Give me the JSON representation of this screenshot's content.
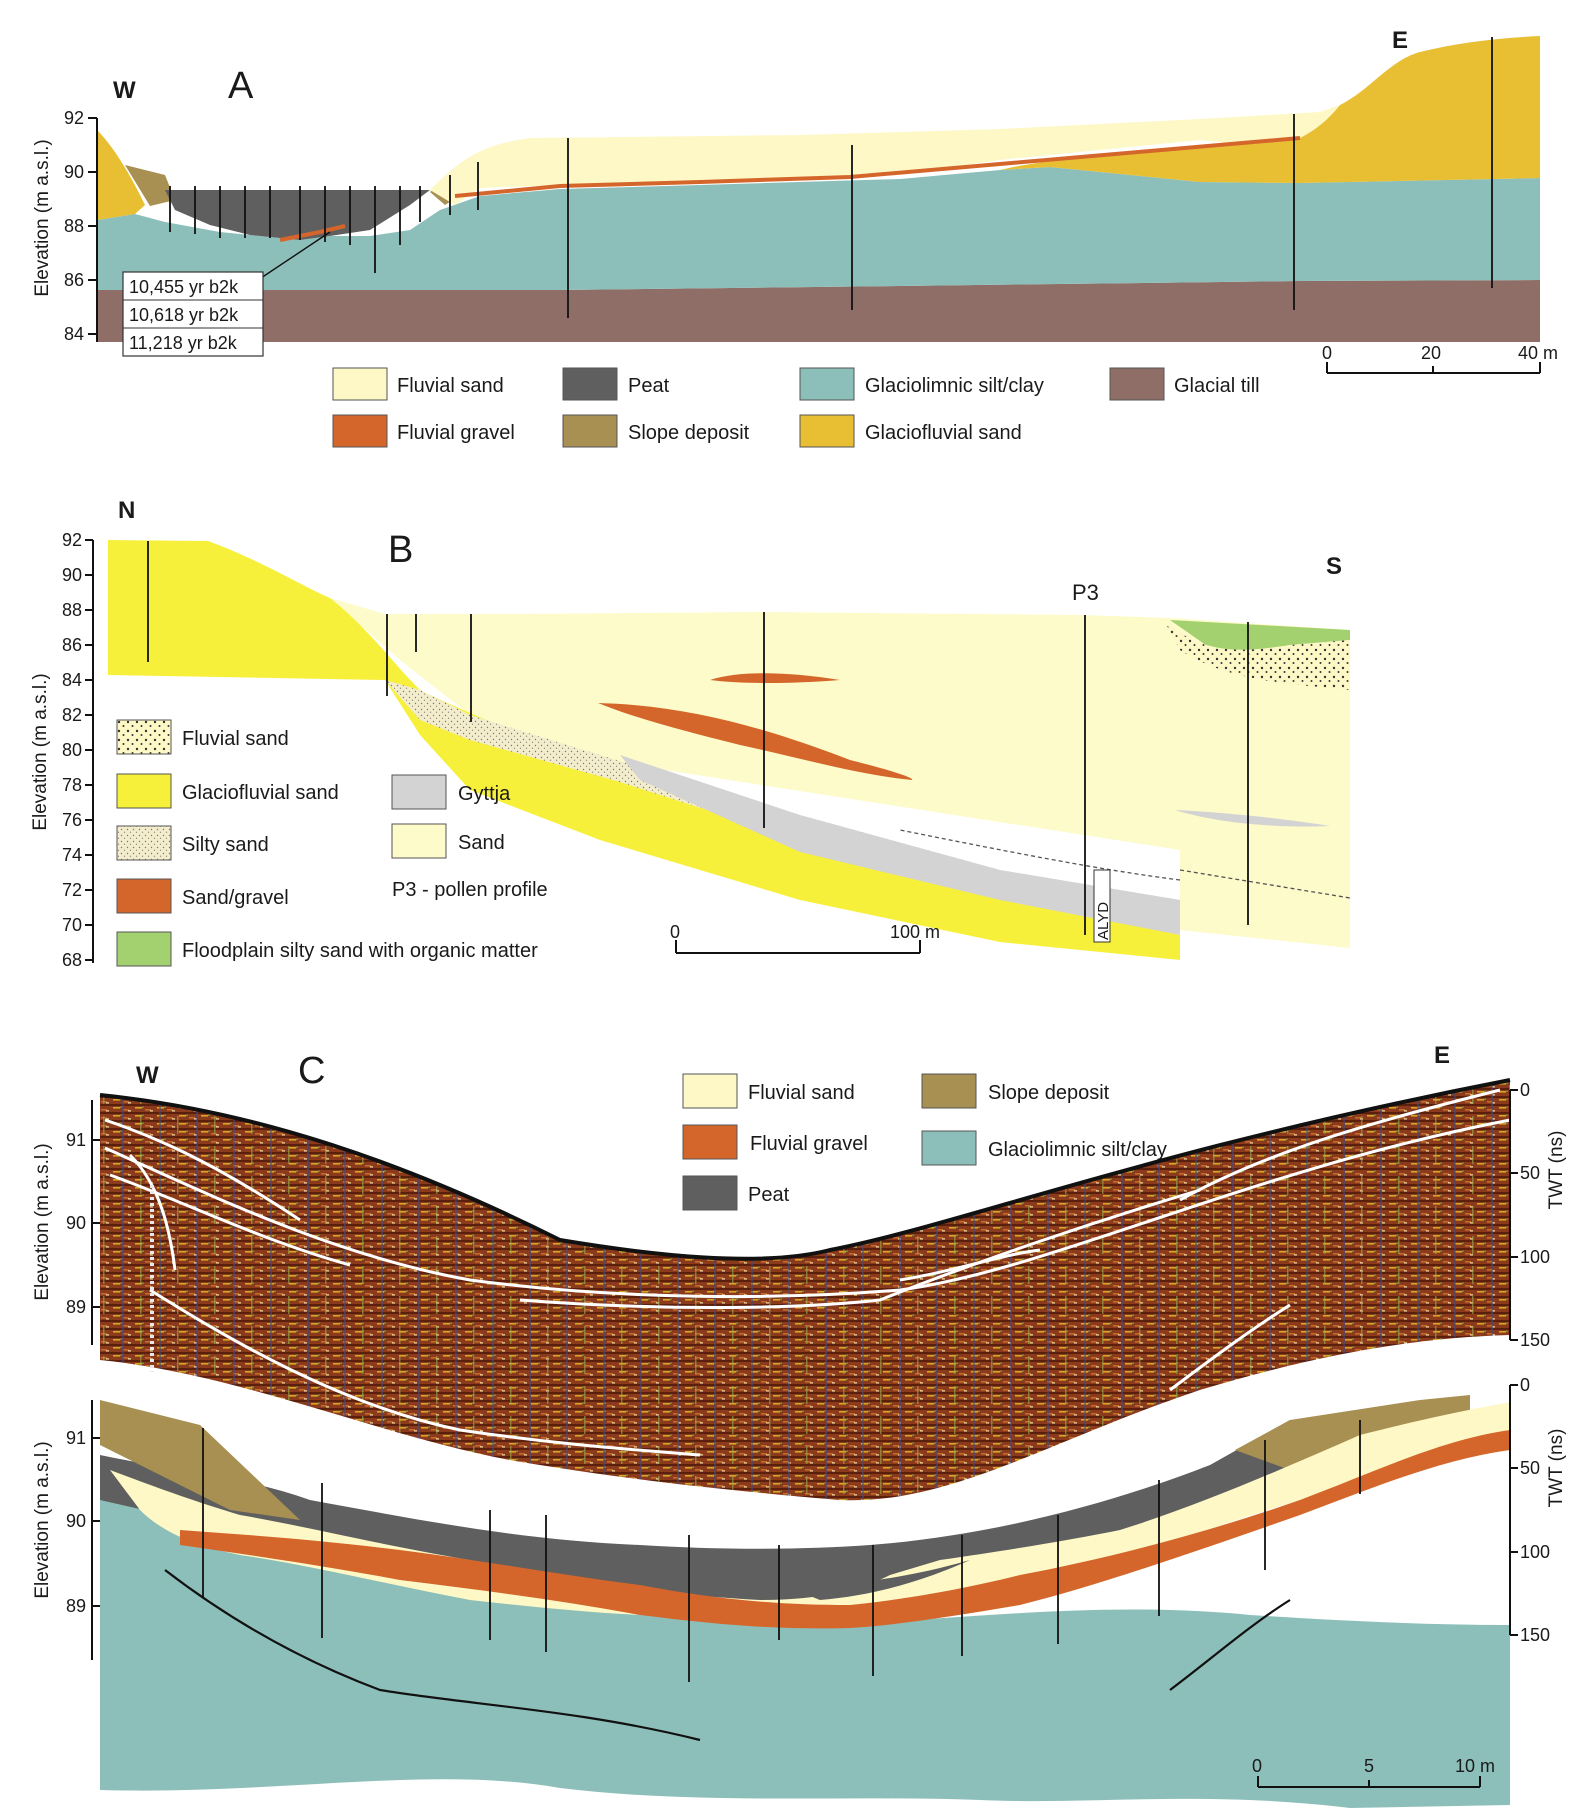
{
  "colors": {
    "fluvial_sand": "#fdf8c6",
    "fluvial_gravel": "#d5662b",
    "peat": "#5f5f5f",
    "slope_deposit": "#a88f52",
    "glaciolimnic": "#8dbfba",
    "glacial_till": "#8e6e66",
    "glaciofluvial_sand_A": "#e8bf33",
    "glaciofluvial_sand_B": "#f7f03a",
    "gyttja": "#d3d3d3",
    "sand_B": "#fdfbc9",
    "floodplain": "#a4d16f",
    "silty_sand": "#f3edcd",
    "gpr_base": "#8c3a1c"
  },
  "panel_a": {
    "letter": "A",
    "west": "W",
    "east": "E",
    "ylabel": "Elevation (m a.s.l.)",
    "yticks": [
      "92",
      "90",
      "88",
      "86",
      "84"
    ],
    "dates": [
      "10,455 yr b2k",
      "10,618 yr b2k",
      "11,218 yr b2k"
    ],
    "scale": [
      "0",
      "20",
      "40 m"
    ],
    "legend": [
      {
        "label": "Fluvial sand",
        "key": "fluvial_sand"
      },
      {
        "label": "Peat",
        "key": "peat"
      },
      {
        "label": "Glaciolimnic silt/clay",
        "key": "glaciolimnic"
      },
      {
        "label": "Glacial till",
        "key": "glacial_till"
      },
      {
        "label": "Fluvial gravel",
        "key": "fluvial_gravel"
      },
      {
        "label": "Slope deposit",
        "key": "slope_deposit"
      },
      {
        "label": "Glaciofluvial sand",
        "key": "glaciofluvial_sand_A"
      }
    ]
  },
  "panel_b": {
    "letter": "B",
    "north": "N",
    "south": "S",
    "profile": "P3",
    "core_label": "ALYD",
    "ylabel": "Elevation (m a.s.l.)",
    "yticks": [
      "92",
      "90",
      "88",
      "86",
      "84",
      "82",
      "80",
      "78",
      "76",
      "74",
      "72",
      "70",
      "68"
    ],
    "scale": [
      "0",
      "100 m"
    ],
    "legend": [
      {
        "label": "Fluvial sand",
        "key": "fluvial_sand"
      },
      {
        "label": "Glaciofluvial sand",
        "key": "glaciofluvial_sand_B"
      },
      {
        "label": "Silty sand",
        "key": "silty_sand"
      },
      {
        "label": "Sand/gravel",
        "key": "fluvial_gravel"
      },
      {
        "label": "Floodplain silty sand with organic matter",
        "key": "floodplain"
      },
      {
        "label": "Gyttja",
        "key": "gyttja"
      },
      {
        "label": "Sand",
        "key": "sand_B"
      }
    ],
    "note": "P3 - pollen profile"
  },
  "panel_c": {
    "letter": "C",
    "west": "W",
    "east": "E",
    "ylabel": "Elevation (m a.s.l.)",
    "yticks": [
      "91",
      "90",
      "89"
    ],
    "twt_label": "TWT (ns)",
    "twt_ticks": [
      "0",
      "50",
      "100",
      "150"
    ],
    "scale": [
      "0",
      "5",
      "10 m"
    ],
    "legend": [
      {
        "label": "Fluvial sand",
        "key": "fluvial_sand"
      },
      {
        "label": "Fluvial gravel",
        "key": "fluvial_gravel"
      },
      {
        "label": "Peat",
        "key": "peat"
      },
      {
        "label": "Slope deposit",
        "key": "slope_deposit"
      },
      {
        "label": "Glaciolimnic silt/clay",
        "key": "glaciolimnic"
      }
    ]
  }
}
